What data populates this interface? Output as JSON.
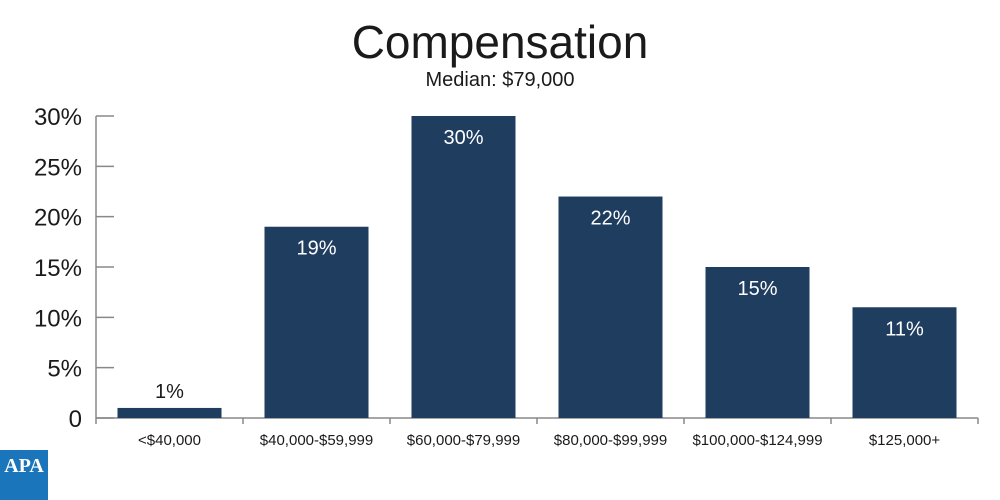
{
  "chart_data": {
    "type": "bar",
    "title": "Compensation",
    "subtitle": "Median: $79,000",
    "categories": [
      "<$40,000",
      "$40,000-$59,999",
      "$60,000-$79,999",
      "$80,000-$99,999",
      "$100,000-$124,999",
      "$125,000+"
    ],
    "values": [
      1,
      19,
      30,
      22,
      15,
      11
    ],
    "data_labels": [
      "1%",
      "19%",
      "30%",
      "22%",
      "15%",
      "11%"
    ],
    "yticks": [
      {
        "value": 0,
        "label": "0"
      },
      {
        "value": 5,
        "label": "5%"
      },
      {
        "value": 10,
        "label": "10%"
      },
      {
        "value": 15,
        "label": "15%"
      },
      {
        "value": 20,
        "label": "20%"
      },
      {
        "value": 25,
        "label": "25%"
      },
      {
        "value": 30,
        "label": "30%"
      }
    ],
    "ylim": [
      0,
      30
    ],
    "grid": false,
    "legend": "none",
    "colors": {
      "bar": "#1f3d5f",
      "axis": "#888888",
      "label_outside": "#1a1a1a",
      "label_inside": "#ffffff"
    }
  },
  "logo": {
    "text": "APA",
    "color": "#1b75bb"
  }
}
